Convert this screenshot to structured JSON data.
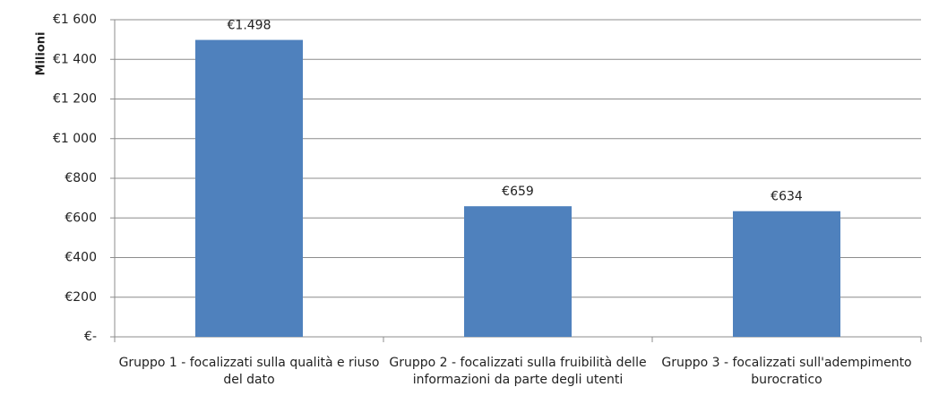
{
  "chart_data": {
    "type": "bar",
    "y_label": "Milioni",
    "categories": [
      "Gruppo 1 - focalizzati sulla qualità e riuso del dato",
      "Gruppo 2 - focalizzati sulla fruibilità delle informazioni da parte degli utenti",
      "Gruppo 3 - focalizzati sull'adempimento burocratico"
    ],
    "values": [
      1498,
      659,
      634
    ],
    "value_labels": [
      "€1.498",
      "€659",
      "€634"
    ],
    "color": "#4f81bd",
    "ylim": [
      0,
      1600
    ],
    "yticks": [
      {
        "value": 0,
        "label": "€-"
      },
      {
        "value": 200,
        "label": "€200"
      },
      {
        "value": 400,
        "label": "€400"
      },
      {
        "value": 600,
        "label": "€600"
      },
      {
        "value": 800,
        "label": "€800"
      },
      {
        "value": 1000,
        "label": "€1 000"
      },
      {
        "value": 1200,
        "label": "€1 200"
      },
      {
        "value": 1400,
        "label": "€1 400"
      },
      {
        "value": 1600,
        "label": "€1 600"
      }
    ],
    "grid": true
  }
}
